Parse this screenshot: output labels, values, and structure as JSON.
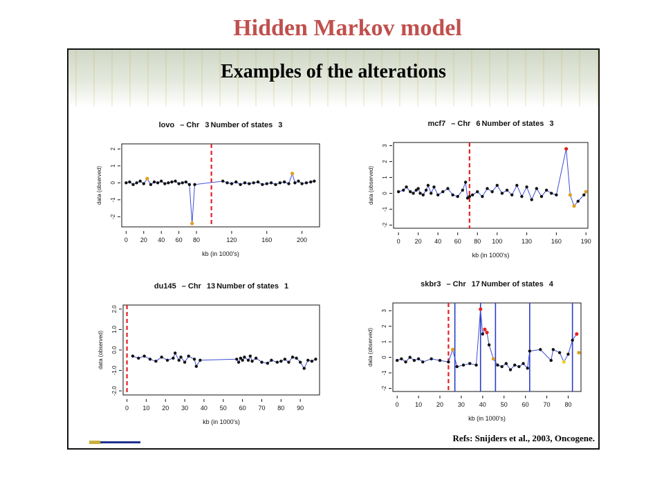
{
  "slide": {
    "title": "Hidden Markov model"
  },
  "banner": {
    "title": "Examples of the alterations"
  },
  "refs": "Refs: Snijders et al., 2003, Oncogene.",
  "colors": {
    "title": "#c0504d",
    "data": "#000000",
    "line": "#3b4bd6",
    "cut": "#e62020",
    "state_hi": "#e62020",
    "state_mid": "#e0a020",
    "state_low": "#f0d020"
  },
  "chart_data": [
    {
      "type": "line",
      "title_parts": [
        "lovo",
        "– Chr",
        "3",
        "Number of states",
        "3"
      ],
      "xlabel": "kb (in 1000's)",
      "ylabel": "data (observed)",
      "xlim": [
        -5,
        220
      ],
      "ylim": [
        -2.6,
        2.3
      ],
      "xticks": [
        0,
        20,
        40,
        60,
        80,
        120,
        160,
        200
      ],
      "yticks": [
        -2,
        -1,
        0,
        1,
        2
      ],
      "ytick_labels": [
        "-2",
        "-1",
        "0",
        "1",
        "2"
      ],
      "cuts": [
        {
          "x": 97,
          "style": "dashed",
          "color": "#e62020"
        }
      ],
      "series": [
        {
          "x": [
            0,
            4,
            8,
            12,
            16,
            20,
            24,
            28,
            32,
            36,
            40,
            44,
            48,
            52,
            56,
            60,
            64,
            68,
            72,
            75,
            78,
            110,
            115,
            120,
            125,
            130,
            135,
            140,
            145,
            150,
            155,
            160,
            165,
            170,
            175,
            180,
            185,
            189,
            192,
            196,
            200,
            205,
            210,
            214
          ],
          "y": [
            0,
            0.05,
            -0.1,
            0,
            0.1,
            -0.05,
            0.25,
            -0.1,
            0.05,
            0,
            0.1,
            -0.05,
            0,
            0.05,
            0.1,
            -0.05,
            0,
            0.05,
            -0.1,
            -2.4,
            -0.1,
            0.1,
            0,
            -0.05,
            0.05,
            -0.1,
            0,
            -0.05,
            0,
            0.05,
            -0.1,
            -0.05,
            0,
            -0.1,
            0,
            0.05,
            -0.05,
            0.55,
            0,
            0.1,
            -0.05,
            0,
            0.05,
            0.1
          ],
          "color": "#3b4bd6"
        }
      ],
      "highlights": [
        {
          "x": 24,
          "y": 0.25,
          "color": "#e0a020"
        },
        {
          "x": 75,
          "y": -2.4,
          "color": "#e0a020"
        },
        {
          "x": 189,
          "y": 0.55,
          "color": "#e0a020"
        }
      ]
    },
    {
      "type": "line",
      "title_parts": [
        "mcf7",
        "– Chr",
        "6",
        "Number of states",
        "3"
      ],
      "xlabel": "kb (in 1000's)",
      "ylabel": "data (observed)",
      "xlim": [
        -5,
        192
      ],
      "ylim": [
        -2.2,
        3.2
      ],
      "xticks": [
        0,
        20,
        40,
        60,
        80,
        100,
        130,
        160,
        190
      ],
      "xtick_labels": [
        "0",
        "20",
        "40",
        "60",
        "80",
        "100",
        "130",
        "160",
        "190"
      ],
      "yticks": [
        -2,
        -1,
        0,
        1,
        2,
        3
      ],
      "ytick_labels": [
        "-2",
        "-1",
        "0",
        "1",
        "2",
        "3"
      ],
      "cuts": [
        {
          "x": 72,
          "style": "dashed",
          "color": "#e62020"
        }
      ],
      "series": [
        {
          "x": [
            0,
            5,
            8,
            12,
            15,
            18,
            20,
            22,
            25,
            28,
            30,
            33,
            36,
            40,
            45,
            50,
            55,
            60,
            65,
            68,
            70,
            72,
            75,
            80,
            85,
            90,
            95,
            100,
            105,
            110,
            115,
            120,
            125,
            130,
            135,
            140,
            145,
            150,
            155,
            160,
            170,
            174,
            178,
            182,
            188,
            190
          ],
          "y": [
            0.1,
            0.2,
            0.4,
            0.1,
            0,
            0.2,
            0.3,
            0,
            -0.1,
            0.2,
            0.5,
            0,
            0.4,
            -0.1,
            0.1,
            0.3,
            -0.1,
            -0.2,
            0.2,
            0.7,
            -0.3,
            -0.2,
            -0.1,
            0.1,
            -0.2,
            0.3,
            0.1,
            0.5,
            0,
            0.2,
            -0.1,
            0.5,
            -0.2,
            0.4,
            -0.4,
            0.3,
            -0.2,
            0.2,
            0,
            -0.1,
            2.8,
            -0.1,
            -0.8,
            -0.5,
            -0.1,
            0.1
          ],
          "color": "#3b4bd6"
        }
      ],
      "highlights": [
        {
          "x": 170,
          "y": 2.8,
          "color": "#e62020"
        },
        {
          "x": 174,
          "y": -0.1,
          "color": "#e0a020"
        },
        {
          "x": 178,
          "y": -0.8,
          "color": "#e0a020"
        },
        {
          "x": 190,
          "y": 0.1,
          "color": "#e0a020"
        }
      ]
    },
    {
      "type": "line",
      "title_parts": [
        "du145",
        "– Chr",
        "13",
        "Number of states",
        "1"
      ],
      "xlabel": "kb (in 1000's)",
      "ylabel": "data (observed)",
      "xlim": [
        -2,
        100
      ],
      "ylim": [
        -2.2,
        2.2
      ],
      "xticks": [
        0,
        10,
        20,
        30,
        40,
        50,
        60,
        70,
        80,
        90
      ],
      "yticks": [
        -2,
        -1,
        0,
        1,
        2
      ],
      "ytick_labels": [
        "-2.0",
        "-1.0",
        "0.0",
        "1.0",
        "2.0"
      ],
      "cuts": [
        {
          "x": 0,
          "style": "dashed",
          "color": "#e62020"
        }
      ],
      "series": [
        {
          "x": [
            3,
            6,
            9,
            12,
            15,
            18,
            21,
            24,
            25,
            27,
            28,
            30,
            32,
            35,
            36,
            38,
            57,
            58,
            59,
            60,
            61,
            63,
            64,
            65,
            67,
            70,
            73,
            75,
            78,
            80,
            82,
            84,
            86,
            88,
            90,
            92,
            94,
            96,
            98
          ],
          "y": [
            -0.3,
            -0.4,
            -0.3,
            -0.45,
            -0.55,
            -0.35,
            -0.5,
            -0.4,
            -0.15,
            -0.5,
            -0.35,
            -0.6,
            -0.3,
            -0.45,
            -0.8,
            -0.5,
            -0.45,
            -0.6,
            -0.4,
            -0.5,
            -0.35,
            -0.5,
            -0.3,
            -0.55,
            -0.4,
            -0.6,
            -0.65,
            -0.5,
            -0.6,
            -0.55,
            -0.45,
            -0.6,
            -0.35,
            -0.4,
            -0.6,
            -0.9,
            -0.5,
            -0.55,
            -0.45
          ],
          "color": "#3b4bd6"
        }
      ],
      "highlights": []
    },
    {
      "type": "line",
      "title_parts": [
        "skbr3",
        "– Chr",
        "17",
        "Number of states",
        "4"
      ],
      "xlabel": "kb (in 1000's)",
      "ylabel": "data (observed)",
      "xlim": [
        -2,
        86
      ],
      "ylim": [
        -2.2,
        3.5
      ],
      "xticks": [
        0,
        10,
        20,
        30,
        40,
        50,
        60,
        70,
        80
      ],
      "yticks": [
        -2,
        -1,
        0,
        1,
        2,
        3
      ],
      "ytick_labels": [
        "-2",
        "-1",
        "0",
        "1",
        "2",
        "3"
      ],
      "cuts": [
        {
          "x": 24,
          "style": "dashed",
          "color": "#e62020"
        },
        {
          "x": 27,
          "style": "solid",
          "color": "#2a3cc8"
        },
        {
          "x": 39,
          "style": "solid",
          "color": "#2a3cc8"
        },
        {
          "x": 46,
          "style": "solid",
          "color": "#2a3cc8"
        },
        {
          "x": 62,
          "style": "solid",
          "color": "#2a3cc8"
        },
        {
          "x": 82,
          "style": "solid",
          "color": "#2a3cc8"
        }
      ],
      "series": [
        {
          "x": [
            0,
            2,
            4,
            6,
            8,
            10,
            12,
            16,
            20,
            24,
            26,
            28,
            31,
            34,
            37,
            39,
            40,
            41,
            42,
            43,
            45,
            47,
            49,
            51,
            53,
            55,
            57,
            59,
            61,
            62,
            67,
            72,
            73,
            76,
            78,
            80,
            82,
            84
          ],
          "y": [
            -0.2,
            -0.1,
            -0.3,
            0,
            -0.2,
            -0.1,
            -0.3,
            -0.1,
            -0.2,
            -0.3,
            0.5,
            -0.6,
            -0.5,
            -0.4,
            -0.5,
            3.1,
            1.5,
            1.8,
            1.6,
            0.8,
            -0.1,
            -0.5,
            -0.6,
            -0.4,
            -0.8,
            -0.5,
            -0.6,
            -0.4,
            -0.7,
            0.4,
            0.5,
            -0.2,
            0.5,
            0.3,
            -0.3,
            0.2,
            1.1,
            1.5
          ],
          "color": "#3b4bd6"
        }
      ],
      "highlights": [
        {
          "x": 39,
          "y": 3.1,
          "color": "#e62020"
        },
        {
          "x": 41,
          "y": 1.8,
          "color": "#e62020"
        },
        {
          "x": 42,
          "y": 1.6,
          "color": "#e62020"
        },
        {
          "x": 84,
          "y": 1.5,
          "color": "#e62020"
        },
        {
          "x": 26,
          "y": 0.5,
          "color": "#e0a020"
        },
        {
          "x": 45,
          "y": -0.1,
          "color": "#e0a020"
        },
        {
          "x": 78,
          "y": -0.3,
          "color": "#f0d020"
        },
        {
          "x": 85,
          "y": 0.3,
          "color": "#e0a020"
        }
      ]
    }
  ]
}
